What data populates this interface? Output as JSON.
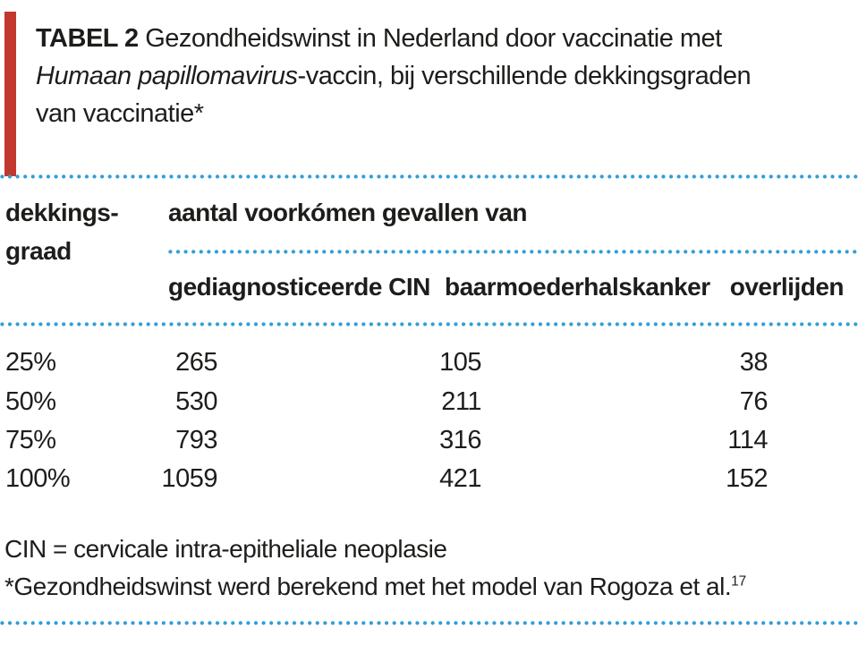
{
  "colors": {
    "accent_red": "#c2382f",
    "dot_blue": "#2f9ed8",
    "text": "#1d1d1b",
    "background": "#ffffff"
  },
  "table": {
    "label": "TABEL 2",
    "caption_part1": "Gezondheidswinst in Nederland door vaccinatie met",
    "caption_italic": "Humaan papillomavirus",
    "caption_part2": "-vaccin, bij verschillende dekkingsgraden",
    "caption_part3": "van vaccinatie*",
    "rowgroup_header_line1": "dekkings-",
    "rowgroup_header_line2": "graad",
    "span_header": "aantal voorkómen gevallen van",
    "sub_headers": [
      "gediagnosticeerde CIN",
      "baarmoederhalskanker",
      "overlijden"
    ],
    "rows": [
      [
        "25%",
        "265",
        "105",
        "38"
      ],
      [
        "50%",
        "530",
        "211",
        "76"
      ],
      [
        "75%",
        "793",
        "316",
        "114"
      ],
      [
        "100%",
        "1059",
        "421",
        "152"
      ]
    ],
    "footnote_1": "CIN = cervicale intra-epitheliale neoplasie",
    "footnote_2": "*Gezondheidswinst werd berekend met het model van Rogoza et al.",
    "footnote_2_ref": "17"
  }
}
